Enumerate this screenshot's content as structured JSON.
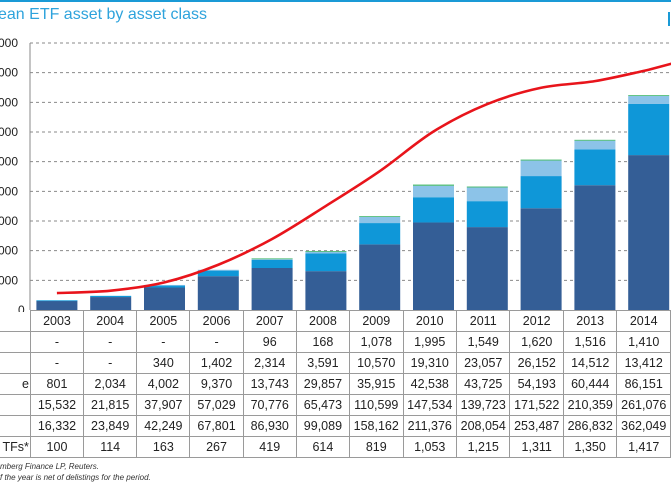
{
  "title": "ean ETF asset by asset class",
  "chart_data": {
    "type": "bar",
    "stacked": true,
    "categories": [
      "2003",
      "2004",
      "2005",
      "2006",
      "2007",
      "2008",
      "2009",
      "2010",
      "2011",
      "2012",
      "2013",
      "2014"
    ],
    "y_tick_labels": [
      "000",
      "000",
      "000",
      "000",
      "000",
      "000",
      "000",
      "000",
      "000",
      "0"
    ],
    "ylim": [
      0,
      450000
    ],
    "y2lim": [
      0,
      1575
    ],
    "grid": true,
    "series": [
      {
        "color": "#345e96",
        "values": [
          15532,
          21815,
          37907,
          57029,
          70776,
          65473,
          110599,
          147534,
          139723,
          171522,
          210359,
          261076
        ]
      },
      {
        "color": "#0f97d8",
        "values": [
          801,
          2034,
          4002,
          9370,
          13743,
          29857,
          35915,
          42538,
          43725,
          54193,
          60444,
          86151
        ]
      },
      {
        "color": "#8cc3e8",
        "values": [
          0,
          0,
          340,
          1402,
          2314,
          3591,
          10570,
          19310,
          23057,
          26152,
          14512,
          13412
        ]
      },
      {
        "color": "#43b86a",
        "values": [
          0,
          0,
          0,
          0,
          96,
          168,
          1078,
          1995,
          1549,
          1620,
          1516,
          1410
        ]
      }
    ],
    "line_series": {
      "type": "line",
      "axis": "secondary",
      "color": "#e8141b",
      "values": [
        100,
        114,
        163,
        267,
        419,
        614,
        819,
        1053,
        1215,
        1311,
        1350,
        1417
      ]
    }
  },
  "table": {
    "header": [
      "2003",
      "2004",
      "2005",
      "2006",
      "2007",
      "2008",
      "2009",
      "2010",
      "2011",
      "2012",
      "2013",
      "2014"
    ],
    "rows": [
      {
        "label": "",
        "cells": [
          "-",
          "-",
          "-",
          "-",
          "96",
          "168",
          "1,078",
          "1,995",
          "1,549",
          "1,620",
          "1,516",
          "1,410"
        ]
      },
      {
        "label": "",
        "cells": [
          "-",
          "-",
          "340",
          "1,402",
          "2,314",
          "3,591",
          "10,570",
          "19,310",
          "23,057",
          "26,152",
          "14,512",
          "13,412"
        ]
      },
      {
        "label": "e",
        "cells": [
          "801",
          "2,034",
          "4,002",
          "9,370",
          "13,743",
          "29,857",
          "35,915",
          "42,538",
          "43,725",
          "54,193",
          "60,444",
          "86,151"
        ]
      },
      {
        "label": "",
        "cells": [
          "15,532",
          "21,815",
          "37,907",
          "57,029",
          "70,776",
          "65,473",
          "110,599",
          "147,534",
          "139,723",
          "171,522",
          "210,359",
          "261,076"
        ]
      },
      {
        "label": "",
        "cells": [
          "16,332",
          "23,849",
          "42,249",
          "67,801",
          "86,930",
          "99,089",
          "158,162",
          "211,376",
          "208,054",
          "253,487",
          "286,832",
          "362,049"
        ]
      },
      {
        "label": "TFs*",
        "cells": [
          "100",
          "114",
          "163",
          "267",
          "419",
          "614",
          "819",
          "1,053",
          "1,215",
          "1,311",
          "1,350",
          "1,417"
        ]
      }
    ]
  },
  "footnotes": [
    "mberg Finance LP, Reuters.",
    "f the year is net of delistings for the period."
  ]
}
